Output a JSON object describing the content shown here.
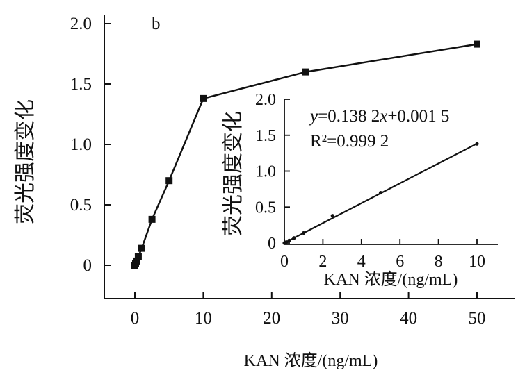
{
  "chart_data": [
    {
      "type": "line",
      "panel_label": "b",
      "xlabel": "KAN 浓度/(ng/mL)",
      "ylabel": "荧光强度变化",
      "xlim": [
        -5,
        55
      ],
      "ylim": [
        -0.25,
        2.05
      ],
      "xticks": [
        "0",
        "10",
        "20",
        "30",
        "40",
        "50"
      ],
      "yticks": [
        "0",
        "0.5",
        "1.0",
        "1.5",
        "2.0"
      ],
      "x": [
        0,
        0.1,
        0.25,
        0.5,
        1,
        2.5,
        5,
        10,
        25,
        50
      ],
      "y": [
        0.0,
        0.013,
        0.035,
        0.07,
        0.14,
        0.38,
        0.7,
        1.38,
        1.6,
        1.83
      ]
    },
    {
      "type": "line",
      "role": "inset",
      "xlabel": "KAN 浓度/(ng/mL)",
      "ylabel": "荧光强度变化",
      "xlim": [
        0,
        11
      ],
      "ylim": [
        0,
        2.0
      ],
      "xticks": [
        "0",
        "2",
        "4",
        "6",
        "8",
        "10"
      ],
      "yticks": [
        "0",
        "0.5",
        "1.0",
        "1.5",
        "2.0"
      ],
      "points_x": [
        0,
        0.1,
        0.25,
        0.5,
        1,
        2.5,
        5,
        10
      ],
      "points_y": [
        0.0,
        0.013,
        0.035,
        0.07,
        0.14,
        0.38,
        0.7,
        1.38
      ],
      "equation": "y=0.138 2x+0.001 5",
      "r2_label": "R²=0.999 2",
      "fit": {
        "slope": 0.1382,
        "intercept": 0.0015
      }
    }
  ]
}
